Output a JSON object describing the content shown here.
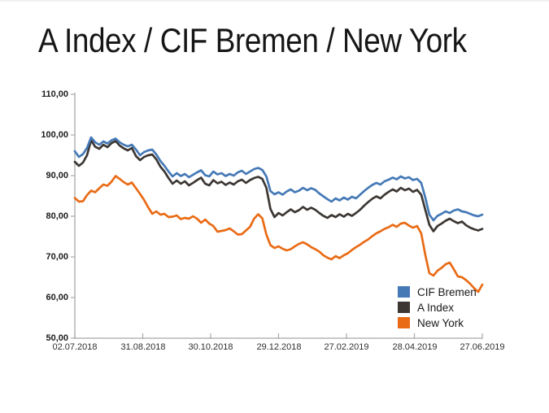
{
  "slide": {
    "title": "A Index / CIF Bremen / New York"
  },
  "chart_data": {
    "type": "line",
    "title": "A Index / CIF Bremen / New York",
    "x_tick_labels": [
      "02.07.2018",
      "31.08.2018",
      "30.10.2018",
      "29.12.2018",
      "27.02.2019",
      "28.04.2019",
      "27.06.2019"
    ],
    "y_tick_labels": [
      "110,00",
      "100,00",
      "90,00",
      "80,00",
      "70,00",
      "60,00",
      "50,00"
    ],
    "ylim": [
      50,
      110
    ],
    "y_tick_step": 10,
    "grid": false,
    "axis_color": "#a9a9a9",
    "legend_position": "inside-bottom-right",
    "draw_order": [
      1,
      2,
      0
    ],
    "series": [
      {
        "name": "CIF Bremen",
        "color": "#4579b6",
        "values": [
          96.0,
          94.6,
          95.3,
          96.8,
          99.4,
          98.2,
          97.6,
          98.4,
          97.9,
          98.7,
          99.1,
          98.2,
          97.6,
          97.2,
          97.6,
          96.4,
          95.0,
          95.8,
          96.2,
          96.4,
          95.2,
          93.6,
          92.4,
          91.0,
          89.8,
          90.6,
          89.9,
          90.4,
          89.6,
          90.2,
          90.8,
          91.3,
          90.1,
          89.8,
          91.0,
          90.3,
          90.6,
          89.9,
          90.4,
          90.0,
          90.8,
          91.2,
          90.4,
          91.0,
          91.6,
          91.9,
          91.4,
          89.8,
          86.2,
          85.4,
          85.9,
          85.3,
          86.1,
          86.6,
          85.9,
          86.3,
          87.0,
          86.4,
          86.9,
          86.5,
          85.6,
          84.9,
          84.2,
          83.6,
          84.4,
          83.9,
          84.6,
          84.1,
          84.8,
          84.4,
          85.3,
          86.2,
          87.0,
          87.7,
          88.2,
          87.8,
          88.6,
          89.0,
          89.5,
          89.1,
          89.8,
          89.3,
          89.6,
          88.9,
          89.2,
          88.2,
          84.6,
          80.4,
          79.0,
          80.1,
          80.6,
          81.2,
          80.8,
          81.4,
          81.7,
          81.2,
          81.0,
          80.6,
          80.2,
          80.0,
          80.4
        ]
      },
      {
        "name": "A Index",
        "color": "#3c3733",
        "values": [
          93.4,
          92.4,
          93.2,
          95.0,
          98.7,
          97.1,
          96.6,
          97.6,
          97.0,
          98.0,
          98.5,
          97.4,
          96.7,
          96.2,
          96.8,
          94.8,
          93.8,
          94.6,
          95.0,
          95.2,
          94.0,
          92.2,
          91.0,
          89.4,
          88.0,
          88.8,
          88.0,
          88.6,
          87.6,
          88.2,
          88.9,
          89.5,
          88.0,
          87.6,
          88.9,
          88.1,
          88.5,
          87.7,
          88.3,
          87.8,
          88.6,
          89.0,
          88.2,
          88.9,
          89.4,
          89.7,
          89.2,
          87.0,
          81.8,
          79.8,
          80.8,
          80.2,
          81.0,
          81.7,
          81.0,
          81.5,
          82.3,
          81.6,
          82.1,
          81.6,
          80.8,
          80.1,
          79.6,
          80.3,
          79.8,
          80.5,
          79.9,
          80.6,
          80.1,
          80.8,
          81.6,
          82.6,
          83.5,
          84.3,
          84.9,
          84.4,
          85.3,
          86.0,
          86.6,
          86.1,
          87.0,
          86.4,
          86.8,
          86.0,
          86.5,
          85.3,
          81.6,
          77.9,
          76.3,
          77.6,
          78.2,
          78.9,
          79.4,
          78.8,
          78.3,
          78.7,
          77.8,
          77.2,
          76.8,
          76.5,
          76.9
        ]
      },
      {
        "name": "New York",
        "color": "#e96b16",
        "values": [
          84.5,
          83.6,
          83.7,
          85.2,
          86.3,
          85.9,
          86.9,
          87.8,
          87.5,
          88.5,
          89.9,
          89.2,
          88.4,
          87.8,
          88.3,
          86.9,
          85.5,
          84.0,
          82.2,
          80.6,
          81.2,
          80.4,
          80.6,
          79.8,
          79.9,
          80.2,
          79.3,
          79.6,
          79.4,
          80.0,
          79.4,
          78.4,
          79.2,
          78.2,
          77.6,
          76.2,
          76.4,
          76.6,
          77.0,
          76.3,
          75.5,
          75.6,
          76.5,
          77.4,
          79.4,
          80.5,
          79.5,
          75.5,
          72.9,
          72.2,
          72.6,
          72.0,
          71.6,
          71.9,
          72.6,
          73.2,
          73.6,
          73.1,
          72.4,
          71.9,
          71.3,
          70.4,
          69.8,
          69.4,
          70.2,
          69.7,
          70.4,
          70.9,
          71.7,
          72.4,
          73.0,
          73.7,
          74.3,
          75.1,
          75.8,
          76.3,
          76.9,
          77.3,
          77.9,
          77.4,
          78.2,
          78.4,
          77.7,
          77.2,
          77.6,
          75.8,
          70.5,
          66.0,
          65.4,
          66.6,
          67.3,
          68.2,
          68.6,
          67.0,
          65.2,
          65.0,
          64.3,
          63.4,
          62.3,
          61.4,
          63.2
        ]
      }
    ]
  }
}
